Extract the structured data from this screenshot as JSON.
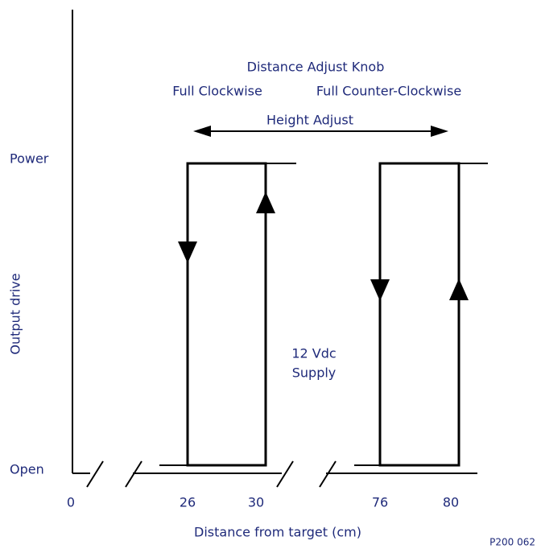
{
  "title": "Distance Adjust Knob",
  "knob_positions": [
    "Full Clockwise",
    "Full Counter-Clockwise"
  ],
  "arrow_label": "Height Adjust",
  "y_axis": {
    "label": "Output drive",
    "top": "Power",
    "bottom": "Open"
  },
  "x_axis": {
    "label": "Distance from target (cm)",
    "ticks": [
      "0",
      "26",
      "30",
      "76",
      "80"
    ]
  },
  "supply": [
    "12 Vdc",
    "Supply"
  ],
  "figure_id": "P200 062"
}
